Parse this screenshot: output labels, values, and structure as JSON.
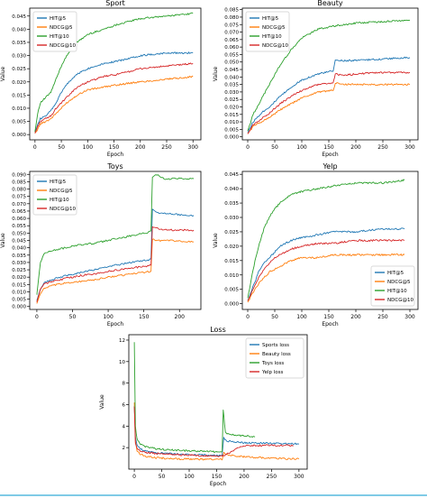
{
  "chart_data": [
    {
      "type": "line",
      "title": "Sport",
      "xlabel": "Epoch",
      "ylabel": "Value",
      "xlim": [
        -10,
        315
      ],
      "ylim": [
        -0.002,
        0.048
      ],
      "xticks": [
        0,
        50,
        100,
        150,
        200,
        250,
        300
      ],
      "yticks": [
        0.0,
        0.005,
        0.01,
        0.015,
        0.02,
        0.025,
        0.03,
        0.035,
        0.04,
        0.045
      ],
      "ytick_labels": [
        "0.000",
        "0.005",
        "0.010",
        "0.015",
        "0.020",
        "0.025",
        "0.030",
        "0.035",
        "0.040",
        "0.045"
      ],
      "grid": false,
      "legend": "top-left",
      "series": [
        {
          "name": "HIT@5",
          "color": "#1f77b4",
          "x": [
            0,
            5,
            10,
            20,
            30,
            40,
            50,
            60,
            80,
            100,
            130,
            160,
            200,
            250,
            300
          ],
          "values": [
            0.001,
            0.004,
            0.006,
            0.007,
            0.009,
            0.012,
            0.016,
            0.019,
            0.023,
            0.025,
            0.027,
            0.028,
            0.03,
            0.031,
            0.031
          ]
        },
        {
          "name": "NDCG@5",
          "color": "#ff7f0e",
          "x": [
            0,
            5,
            10,
            20,
            30,
            40,
            50,
            60,
            80,
            100,
            130,
            160,
            200,
            250,
            300
          ],
          "values": [
            0.0005,
            0.002,
            0.004,
            0.005,
            0.006,
            0.008,
            0.01,
            0.012,
            0.015,
            0.017,
            0.018,
            0.019,
            0.02,
            0.021,
            0.022
          ]
        },
        {
          "name": "HIT@10",
          "color": "#2ca02c",
          "x": [
            0,
            5,
            10,
            20,
            30,
            40,
            50,
            60,
            80,
            100,
            130,
            160,
            200,
            250,
            300
          ],
          "values": [
            0.001,
            0.008,
            0.012,
            0.014,
            0.016,
            0.021,
            0.026,
            0.03,
            0.035,
            0.038,
            0.04,
            0.042,
            0.044,
            0.045,
            0.046
          ]
        },
        {
          "name": "NDCG@10",
          "color": "#d62728",
          "x": [
            0,
            5,
            10,
            20,
            30,
            40,
            50,
            60,
            80,
            100,
            130,
            160,
            200,
            250,
            300
          ],
          "values": [
            0.0005,
            0.003,
            0.005,
            0.006,
            0.007,
            0.01,
            0.012,
            0.014,
            0.018,
            0.02,
            0.022,
            0.023,
            0.025,
            0.026,
            0.027
          ]
        }
      ]
    },
    {
      "type": "line",
      "title": "Beauty",
      "xlabel": "Epoch",
      "ylabel": "Value",
      "xlim": [
        -10,
        315
      ],
      "ylim": [
        -0.002,
        0.086
      ],
      "xticks": [
        0,
        50,
        100,
        150,
        200,
        250,
        300
      ],
      "yticks": [
        0.0,
        0.005,
        0.01,
        0.015,
        0.02,
        0.025,
        0.03,
        0.035,
        0.04,
        0.045,
        0.05,
        0.055,
        0.06,
        0.065,
        0.07,
        0.075,
        0.08,
        0.085
      ],
      "ytick_labels": [
        "0.000",
        "0.005",
        "0.010",
        "0.015",
        "0.020",
        "0.025",
        "0.030",
        "0.035",
        "0.040",
        "0.045",
        "0.050",
        "0.055",
        "0.060",
        "0.065",
        "0.070",
        "0.075",
        "0.080",
        "0.085"
      ],
      "grid": false,
      "legend": "top-left",
      "series": [
        {
          "name": "HIT@5",
          "color": "#1f77b4",
          "x": [
            0,
            10,
            25,
            40,
            60,
            80,
            100,
            130,
            158,
            162,
            175,
            200,
            250,
            300
          ],
          "values": [
            0.003,
            0.01,
            0.016,
            0.02,
            0.027,
            0.033,
            0.038,
            0.042,
            0.044,
            0.051,
            0.051,
            0.051,
            0.052,
            0.053
          ]
        },
        {
          "name": "NDCG@5",
          "color": "#ff7f0e",
          "x": [
            0,
            10,
            25,
            40,
            60,
            80,
            100,
            130,
            158,
            162,
            175,
            200,
            250,
            300
          ],
          "values": [
            0.002,
            0.007,
            0.01,
            0.013,
            0.018,
            0.022,
            0.026,
            0.03,
            0.031,
            0.036,
            0.035,
            0.035,
            0.035,
            0.035
          ]
        },
        {
          "name": "HIT@10",
          "color": "#2ca02c",
          "x": [
            0,
            10,
            25,
            40,
            60,
            80,
            100,
            130,
            160,
            200,
            250,
            300
          ],
          "values": [
            0.004,
            0.015,
            0.025,
            0.035,
            0.048,
            0.058,
            0.066,
            0.072,
            0.074,
            0.076,
            0.077,
            0.078
          ]
        },
        {
          "name": "NDCG@10",
          "color": "#d62728",
          "x": [
            0,
            10,
            25,
            40,
            60,
            80,
            100,
            130,
            158,
            162,
            175,
            200,
            250,
            300
          ],
          "values": [
            0.002,
            0.008,
            0.012,
            0.016,
            0.022,
            0.027,
            0.031,
            0.035,
            0.036,
            0.042,
            0.041,
            0.042,
            0.043,
            0.043
          ]
        }
      ]
    },
    {
      "type": "line",
      "title": "Toys",
      "xlabel": "Epoch",
      "ylabel": "Value",
      "xlim": [
        -10,
        230
      ],
      "ylim": [
        -0.002,
        0.092
      ],
      "xticks": [
        0,
        50,
        100,
        150,
        200
      ],
      "yticks": [
        0.0,
        0.005,
        0.01,
        0.015,
        0.02,
        0.025,
        0.03,
        0.035,
        0.04,
        0.045,
        0.05,
        0.055,
        0.06,
        0.065,
        0.07,
        0.075,
        0.08,
        0.085,
        0.09
      ],
      "ytick_labels": [
        "0.000",
        "0.005",
        "0.010",
        "0.015",
        "0.020",
        "0.025",
        "0.030",
        "0.035",
        "0.040",
        "0.045",
        "0.050",
        "0.055",
        "0.060",
        "0.065",
        "0.070",
        "0.075",
        "0.080",
        "0.085",
        "0.090"
      ],
      "grid": false,
      "legend": "top-left",
      "series": [
        {
          "name": "HIT@5",
          "color": "#1f77b4",
          "x": [
            0,
            5,
            10,
            20,
            40,
            60,
            80,
            100,
            130,
            160,
            162,
            170,
            190,
            210,
            220
          ],
          "values": [
            0.004,
            0.012,
            0.016,
            0.018,
            0.021,
            0.023,
            0.025,
            0.027,
            0.03,
            0.032,
            0.066,
            0.064,
            0.063,
            0.062,
            0.062
          ]
        },
        {
          "name": "NDCG@5",
          "color": "#ff7f0e",
          "x": [
            0,
            5,
            10,
            20,
            40,
            60,
            80,
            100,
            130,
            160,
            162,
            170,
            190,
            210,
            220
          ],
          "values": [
            0.002,
            0.009,
            0.012,
            0.014,
            0.016,
            0.017,
            0.018,
            0.02,
            0.022,
            0.024,
            0.046,
            0.045,
            0.045,
            0.044,
            0.044
          ]
        },
        {
          "name": "HIT@10",
          "color": "#2ca02c",
          "x": [
            0,
            5,
            10,
            20,
            40,
            60,
            80,
            100,
            130,
            160,
            162,
            170,
            180,
            190,
            210,
            220
          ],
          "values": [
            0.008,
            0.03,
            0.036,
            0.038,
            0.04,
            0.042,
            0.043,
            0.045,
            0.048,
            0.051,
            0.088,
            0.09,
            0.086,
            0.087,
            0.087,
            0.087
          ]
        },
        {
          "name": "NDCG@10",
          "color": "#d62728",
          "x": [
            0,
            5,
            10,
            20,
            40,
            60,
            80,
            100,
            130,
            160,
            162,
            170,
            190,
            210,
            220
          ],
          "values": [
            0.003,
            0.012,
            0.015,
            0.017,
            0.019,
            0.021,
            0.022,
            0.024,
            0.026,
            0.028,
            0.054,
            0.053,
            0.052,
            0.052,
            0.052
          ]
        }
      ]
    },
    {
      "type": "line",
      "title": "Yelp",
      "xlabel": "Epoch",
      "ylabel": "Value",
      "xlim": [
        -10,
        315
      ],
      "ylim": [
        -0.002,
        0.046
      ],
      "xticks": [
        0,
        50,
        100,
        150,
        200,
        250,
        300
      ],
      "yticks": [
        0.0,
        0.005,
        0.01,
        0.015,
        0.02,
        0.025,
        0.03,
        0.035,
        0.04,
        0.045
      ],
      "ytick_labels": [
        "0.000",
        "0.005",
        "0.010",
        "0.015",
        "0.020",
        "0.025",
        "0.030",
        "0.035",
        "0.040",
        "0.045"
      ],
      "grid": false,
      "legend": "bottom-right",
      "series": [
        {
          "name": "HIT@5",
          "color": "#1f77b4",
          "x": [
            0,
            10,
            20,
            30,
            40,
            50,
            60,
            80,
            100,
            130,
            160,
            200,
            250,
            290
          ],
          "values": [
            0.001,
            0.006,
            0.011,
            0.014,
            0.016,
            0.018,
            0.02,
            0.022,
            0.023,
            0.024,
            0.025,
            0.025,
            0.026,
            0.026
          ]
        },
        {
          "name": "NDCG@5",
          "color": "#ff7f0e",
          "x": [
            0,
            10,
            20,
            30,
            40,
            50,
            60,
            80,
            100,
            130,
            160,
            200,
            250,
            290
          ],
          "values": [
            0.0005,
            0.004,
            0.007,
            0.009,
            0.011,
            0.012,
            0.013,
            0.015,
            0.016,
            0.016,
            0.017,
            0.017,
            0.017,
            0.017
          ]
        },
        {
          "name": "HIT@10",
          "color": "#2ca02c",
          "x": [
            0,
            10,
            20,
            30,
            40,
            50,
            60,
            80,
            100,
            130,
            160,
            200,
            250,
            290
          ],
          "values": [
            0.002,
            0.012,
            0.02,
            0.026,
            0.03,
            0.033,
            0.035,
            0.038,
            0.039,
            0.04,
            0.041,
            0.042,
            0.042,
            0.043
          ]
        },
        {
          "name": "NDCG@10",
          "color": "#d62728",
          "x": [
            0,
            10,
            20,
            30,
            40,
            50,
            60,
            80,
            100,
            130,
            160,
            200,
            250,
            290
          ],
          "values": [
            0.001,
            0.005,
            0.009,
            0.012,
            0.014,
            0.016,
            0.017,
            0.019,
            0.02,
            0.021,
            0.021,
            0.022,
            0.022,
            0.022
          ]
        }
      ]
    },
    {
      "type": "line",
      "title": "Loss",
      "xlabel": "Epoch",
      "ylabel": "Value",
      "xlim": [
        -10,
        315
      ],
      "ylim": [
        0.0,
        12.5
      ],
      "xticks": [
        0,
        50,
        100,
        150,
        200,
        250,
        300
      ],
      "yticks": [
        2,
        4,
        6,
        8,
        10,
        12
      ],
      "ytick_labels": [
        "2",
        "4",
        "6",
        "8",
        "10",
        "12"
      ],
      "grid": false,
      "legend": "top-right",
      "series": [
        {
          "name": "Sports loss",
          "color": "#1f77b4",
          "x": [
            0,
            2,
            5,
            10,
            20,
            40,
            60,
            80,
            100,
            130,
            160,
            163,
            170,
            200,
            250,
            300
          ],
          "values": [
            5.9,
            3.0,
            2.2,
            1.9,
            1.7,
            1.5,
            1.45,
            1.4,
            1.35,
            1.3,
            1.25,
            2.9,
            2.6,
            2.45,
            2.4,
            2.35
          ]
        },
        {
          "name": "Beauty loss",
          "color": "#ff7f0e",
          "x": [
            0,
            2,
            5,
            10,
            20,
            40,
            60,
            80,
            100,
            130,
            160,
            163,
            170,
            200,
            250,
            300
          ],
          "values": [
            6.2,
            2.6,
            1.7,
            1.4,
            1.2,
            1.05,
            1.0,
            0.95,
            0.95,
            0.9,
            0.9,
            1.5,
            1.3,
            1.15,
            1.0,
            0.95
          ]
        },
        {
          "name": "Toys loss",
          "color": "#2ca02c",
          "x": [
            0,
            2,
            5,
            10,
            20,
            40,
            60,
            80,
            100,
            130,
            160,
            162,
            166,
            175,
            200,
            220
          ],
          "values": [
            11.8,
            4.0,
            2.8,
            2.4,
            2.1,
            1.9,
            1.8,
            1.75,
            1.7,
            1.65,
            1.6,
            5.5,
            3.4,
            3.2,
            3.1,
            3.0
          ]
        },
        {
          "name": "Yelp loss",
          "color": "#d62728",
          "x": [
            0,
            2,
            5,
            10,
            20,
            40,
            60,
            80,
            100,
            130,
            160,
            200,
            250,
            290
          ],
          "values": [
            5.8,
            2.4,
            1.9,
            1.7,
            1.55,
            1.45,
            1.4,
            1.35,
            1.3,
            1.25,
            1.2,
            2.2,
            2.2,
            2.2
          ]
        }
      ]
    }
  ]
}
